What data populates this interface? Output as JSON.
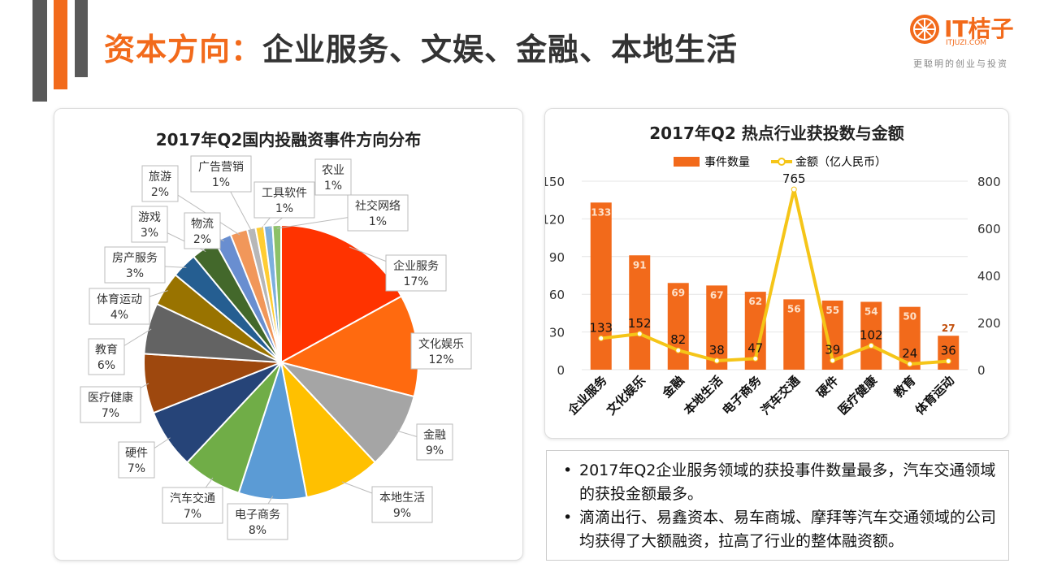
{
  "slide": {
    "title_accent": "资本方向：",
    "title_rest": "企业服务、文娱、金融、本地生活"
  },
  "logo": {
    "name": "IT桔子",
    "domain": "ITJUZI.COM",
    "slogan": "更聪明的创业与投资",
    "icon": "orange-slice-icon",
    "color": "#f26a1b"
  },
  "chart_data": [
    {
      "type": "pie",
      "title": "2017年Q2国内投融资事件方向分布",
      "labels": [
        "企业服务",
        "文化娱乐",
        "金融",
        "本地生活",
        "电子商务",
        "汽车交通",
        "硬件",
        "医疗健康",
        "教育",
        "体育运动",
        "房产服务",
        "游戏",
        "物流",
        "旅游",
        "广告营销",
        "工具软件",
        "农业",
        "社交网络"
      ],
      "values": [
        17,
        12,
        9,
        9,
        8,
        7,
        7,
        7,
        6,
        4,
        3,
        3,
        2,
        2,
        1,
        1,
        1,
        1
      ],
      "value_labels": [
        "17%",
        "12%",
        "9%",
        "9%",
        "8%",
        "7%",
        "7%",
        "7%",
        "6%",
        "4%",
        "3%",
        "3%",
        "2%",
        "2%",
        "1%",
        "1%",
        "1%",
        "1%"
      ],
      "colors": [
        "#ff3300",
        "#ff6a0f",
        "#a5a5a5",
        "#ffc000",
        "#5b9bd5",
        "#70ad47",
        "#264478",
        "#9e480e",
        "#636363",
        "#997300",
        "#255e91",
        "#43682b",
        "#698ed0",
        "#f1975a",
        "#b7b7b7",
        "#ffcd33",
        "#7cafdd",
        "#8cc168"
      ]
    },
    {
      "type": "bar+line",
      "title": "2017年Q2 热点行业获投数与金额",
      "categories": [
        "企业服务",
        "文化娱乐",
        "金融",
        "本地生活",
        "电子商务",
        "汽车交通",
        "硬件",
        "医疗健康",
        "教育",
        "体育运动"
      ],
      "series": [
        {
          "name": "事件数量",
          "type": "bar",
          "axis": "left",
          "color": "#f26a1b",
          "values": [
            133,
            91,
            69,
            67,
            62,
            56,
            55,
            54,
            50,
            27
          ]
        },
        {
          "name": "金额（亿人民币）",
          "type": "line",
          "axis": "right",
          "color": "#f5c518",
          "values": [
            133,
            152,
            82,
            38,
            47,
            765,
            39,
            102,
            24,
            36
          ]
        }
      ],
      "ylim_left": [
        0,
        150
      ],
      "yticks_left": [
        0,
        30,
        60,
        90,
        120,
        150
      ],
      "ylim_right": [
        0,
        800
      ],
      "yticks_right": [
        0,
        200,
        400,
        600,
        800
      ],
      "legend": "top",
      "grid": true
    }
  ],
  "notes": [
    "2017年Q2企业服务领域的获投事件数量最多，汽车交通领域的获投金额最多。",
    "滴滴出行、易鑫资本、易车商城、摩拜等汽车交通领域的公司均获得了大额融资，拉高了行业的整体融资额。"
  ]
}
